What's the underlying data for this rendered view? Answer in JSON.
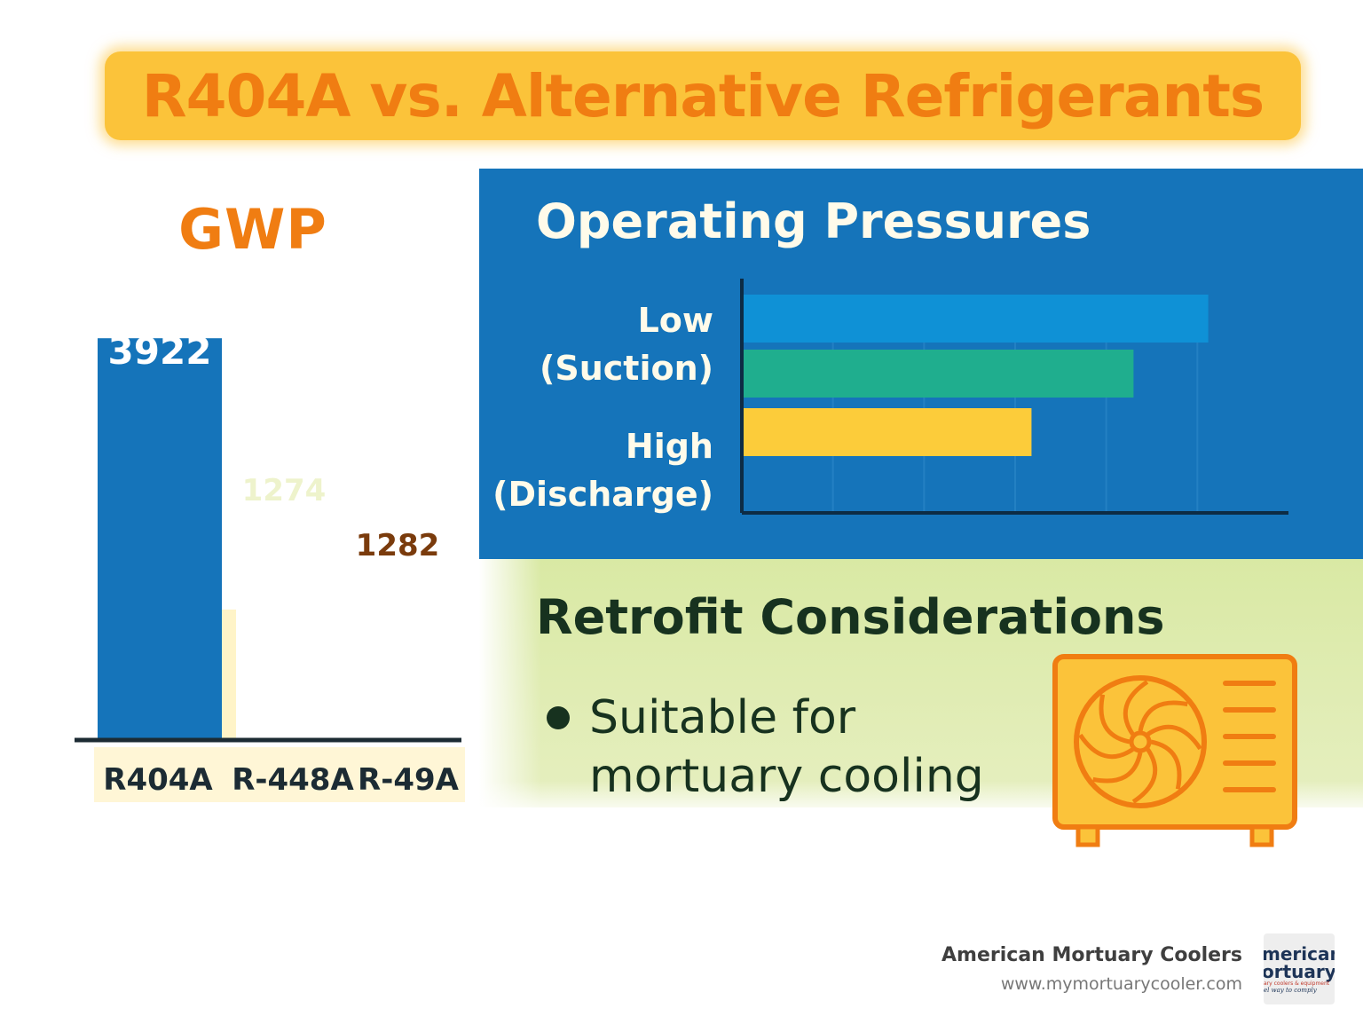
{
  "title": "R404A vs. Alternative Refrigerants",
  "colors": {
    "title_band": "#fbc33a",
    "title_text": "#f07d12",
    "gwp_r404a": "#1574ba",
    "gwp_r448a": "#fff4c8",
    "panel_blue": "#1574ba",
    "bar_blue": "#0f91d6",
    "bar_green": "#1fae8e",
    "bar_yellow": "#fccc3a",
    "panel_green": "#d9e9a4",
    "icon_orange": "#f07d12",
    "icon_fill": "#fbc33a"
  },
  "chart_data": [
    {
      "type": "bar",
      "title": "GWP",
      "categories": [
        "R404A",
        "R-448A",
        "R-49A"
      ],
      "values": [
        3922,
        1274,
        1282
      ],
      "value_labels": [
        "3922",
        "1274",
        "1282"
      ],
      "value_label_colors": [
        "#ffffff",
        "#eef3cc",
        "#7a3b0c"
      ],
      "show_bars": [
        true,
        true,
        false
      ],
      "ylim": [
        0,
        4400
      ],
      "grid": false
    },
    {
      "type": "bar",
      "orientation": "horizontal",
      "title": "Operating Pressures",
      "category_labels": [
        "Low (Suction)",
        "High (Discharge)"
      ],
      "label_lines": [
        [
          "Low",
          "(Suction)"
        ],
        [
          "High",
          "(Discharge)"
        ]
      ],
      "series": [
        {
          "values": [
            510
          ],
          "color": "#0f91d6"
        },
        {
          "values": [
            428
          ],
          "color": "#1fae8e"
        },
        {
          "values": [
            316
          ],
          "color": "#fccc3a"
        }
      ],
      "xlim": [
        0,
        600
      ],
      "grid": true
    }
  ],
  "retrofit": {
    "title": "Retrofit Considerations",
    "bullets": [
      "Suitable for mortuary cooling"
    ],
    "icon": "condenser-unit-icon"
  },
  "footer": {
    "brand": "American Mortuary Coolers",
    "url": "www.mymortuarycooler.com",
    "logo_lines": [
      "merican",
      "ortuary",
      "ary coolers & equipment",
      "el way to comply"
    ]
  }
}
